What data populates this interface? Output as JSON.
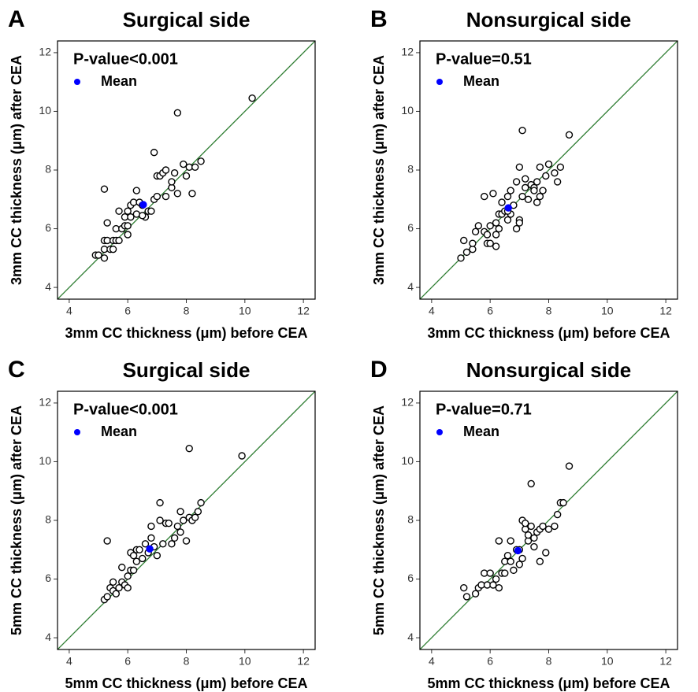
{
  "chart_data": [
    {
      "type": "scatter",
      "panel": "A",
      "title": "Surgical side",
      "xlabel": "3mm CC thickness (μm) before CEA",
      "ylabel": "3mm CC thickness (μm) after CEA",
      "annotation": "P-value<0.001",
      "xlim": [
        3.6,
        12.4
      ],
      "ylim": [
        3.6,
        12.4
      ],
      "xticks": [
        4,
        6,
        8,
        10,
        12
      ],
      "yticks": [
        4,
        6,
        8,
        10,
        12
      ],
      "identity_line": {
        "color": "#2e7d32"
      },
      "series": [
        {
          "color": "#000000",
          "x": [
            4.9,
            5.0,
            5.2,
            5.2,
            5.2,
            5.3,
            5.3,
            5.4,
            5.5,
            5.5,
            5.6,
            5.6,
            5.7,
            5.7,
            5.8,
            5.9,
            5.9,
            6.0,
            6.0,
            6.0,
            6.1,
            6.1,
            6.2,
            6.3,
            6.3,
            6.4,
            6.5,
            6.6,
            6.7,
            6.8,
            6.9,
            6.9,
            7.0,
            7.0,
            7.1,
            7.2,
            7.3,
            7.3,
            7.5,
            7.5,
            7.6,
            7.7,
            7.7,
            7.9,
            8.0,
            8.1,
            8.2,
            8.3,
            8.5,
            10.25,
            5.2,
            6.5
          ],
          "y": [
            5.1,
            5.1,
            5.0,
            5.3,
            5.6,
            5.6,
            6.2,
            5.3,
            5.3,
            5.6,
            5.6,
            6.0,
            6.6,
            5.6,
            6.0,
            6.1,
            6.4,
            5.8,
            6.1,
            6.6,
            6.8,
            6.4,
            6.9,
            7.3,
            6.5,
            6.9,
            6.8,
            6.4,
            6.6,
            6.6,
            8.6,
            7.0,
            7.1,
            7.8,
            7.8,
            7.9,
            8.0,
            7.1,
            7.4,
            7.6,
            7.9,
            9.95,
            7.2,
            8.2,
            7.8,
            8.1,
            7.2,
            8.1,
            8.3,
            10.45,
            7.35,
            6.45
          ]
        },
        {
          "name": "Mean",
          "color": "#0000ff",
          "x": [
            6.53
          ],
          "y": [
            6.82
          ]
        }
      ]
    },
    {
      "type": "scatter",
      "panel": "B",
      "title": "Nonsurgical side",
      "xlabel": "3mm CC thickness (μm) before CEA",
      "ylabel": "3mm CC thickness (μm) after CEA",
      "annotation": "P-value=0.51",
      "xlim": [
        3.6,
        12.4
      ],
      "ylim": [
        3.6,
        12.4
      ],
      "xticks": [
        4,
        6,
        8,
        10,
        12
      ],
      "yticks": [
        4,
        6,
        8,
        10,
        12
      ],
      "identity_line": {
        "color": "#2e7d32"
      },
      "series": [
        {
          "color": "#000000",
          "x": [
            5.0,
            5.1,
            5.2,
            5.4,
            5.4,
            5.5,
            5.6,
            5.8,
            5.8,
            5.9,
            5.9,
            6.0,
            6.0,
            6.1,
            6.2,
            6.2,
            6.3,
            6.3,
            6.4,
            6.4,
            6.5,
            6.6,
            6.6,
            6.7,
            6.7,
            6.8,
            6.9,
            6.9,
            7.0,
            7.0,
            7.0,
            7.1,
            7.1,
            7.2,
            7.2,
            7.3,
            7.4,
            7.5,
            7.5,
            7.6,
            7.6,
            7.7,
            7.7,
            7.8,
            7.9,
            8.0,
            8.2,
            8.3,
            8.4,
            8.7,
            6.6,
            6.2
          ],
          "y": [
            5.0,
            5.6,
            5.2,
            5.3,
            5.5,
            5.9,
            6.1,
            7.1,
            5.9,
            5.5,
            5.8,
            5.5,
            6.1,
            7.2,
            5.4,
            5.8,
            6.5,
            6.0,
            6.5,
            6.9,
            6.6,
            6.3,
            7.1,
            7.3,
            6.5,
            6.8,
            6.0,
            7.6,
            8.1,
            6.3,
            6.2,
            7.1,
            9.35,
            7.7,
            7.4,
            7.0,
            7.5,
            7.4,
            7.3,
            7.6,
            6.9,
            7.1,
            8.1,
            7.3,
            7.8,
            8.2,
            7.9,
            7.6,
            8.1,
            9.2,
            6.6,
            6.2
          ]
        },
        {
          "name": "Mean",
          "color": "#0000ff",
          "x": [
            6.62
          ],
          "y": [
            6.71
          ]
        }
      ]
    },
    {
      "type": "scatter",
      "panel": "C",
      "title": "Surgical side",
      "xlabel": "5mm CC thickness (μm) before CEA",
      "ylabel": "5mm CC thickness (μm) after CEA",
      "annotation": "P-value<0.001",
      "xlim": [
        3.6,
        12.4
      ],
      "ylim": [
        3.6,
        12.4
      ],
      "xticks": [
        4,
        6,
        8,
        10,
        12
      ],
      "yticks": [
        4,
        6,
        8,
        10,
        12
      ],
      "identity_line": {
        "color": "#2e7d32"
      },
      "series": [
        {
          "color": "#000000",
          "x": [
            5.2,
            5.3,
            5.3,
            5.4,
            5.5,
            5.5,
            5.6,
            5.7,
            5.8,
            5.8,
            5.9,
            6.0,
            6.0,
            6.1,
            6.1,
            6.2,
            6.2,
            6.3,
            6.3,
            6.4,
            6.5,
            6.6,
            6.7,
            6.8,
            6.8,
            6.9,
            7.0,
            7.1,
            7.1,
            7.2,
            7.3,
            7.4,
            7.5,
            7.6,
            7.7,
            7.8,
            7.8,
            7.9,
            8.0,
            8.1,
            8.1,
            8.2,
            8.3,
            8.4,
            8.5,
            9.9
          ],
          "y": [
            5.3,
            5.4,
            7.3,
            5.7,
            5.9,
            5.6,
            5.5,
            5.7,
            5.9,
            6.4,
            5.8,
            6.1,
            5.7,
            6.9,
            6.3,
            6.3,
            6.8,
            7.0,
            6.6,
            7.0,
            6.7,
            7.2,
            6.9,
            7.4,
            7.8,
            7.1,
            6.8,
            8.0,
            8.6,
            7.2,
            7.9,
            7.9,
            7.2,
            7.4,
            7.8,
            8.3,
            7.6,
            8.0,
            7.3,
            10.45,
            8.1,
            8.0,
            8.1,
            8.3,
            8.6,
            10.2
          ]
        },
        {
          "name": "Mean",
          "color": "#0000ff",
          "x": [
            6.75
          ],
          "y": [
            7.03
          ]
        }
      ]
    },
    {
      "type": "scatter",
      "panel": "D",
      "title": "Nonsurgical side",
      "xlabel": "5mm CC thickness (μm) before CEA",
      "ylabel": "5mm CC thickness (μm) after CEA",
      "annotation": "P-value=0.71",
      "xlim": [
        3.6,
        12.4
      ],
      "ylim": [
        3.6,
        12.4
      ],
      "xticks": [
        4,
        6,
        8,
        10,
        12
      ],
      "yticks": [
        4,
        6,
        8,
        10,
        12
      ],
      "identity_line": {
        "color": "#2e7d32"
      },
      "series": [
        {
          "color": "#000000",
          "x": [
            5.1,
            5.2,
            5.5,
            5.6,
            5.7,
            5.8,
            5.9,
            6.0,
            6.1,
            6.2,
            6.3,
            6.3,
            6.4,
            6.5,
            6.6,
            6.7,
            6.7,
            6.8,
            6.9,
            7.0,
            7.1,
            7.1,
            7.2,
            7.2,
            7.3,
            7.3,
            7.4,
            7.4,
            7.5,
            7.5,
            7.6,
            7.7,
            7.7,
            7.8,
            7.9,
            8.0,
            8.2,
            8.3,
            8.4,
            8.5,
            8.7,
            6.5,
            7.0
          ],
          "y": [
            5.7,
            5.4,
            5.5,
            5.7,
            5.8,
            6.2,
            5.8,
            6.2,
            5.8,
            6.0,
            5.7,
            7.3,
            6.2,
            6.6,
            6.8,
            7.3,
            6.6,
            6.3,
            7.0,
            6.5,
            6.7,
            8.0,
            7.7,
            7.9,
            7.3,
            7.5,
            9.25,
            7.8,
            7.1,
            7.4,
            7.6,
            7.7,
            6.6,
            7.8,
            6.9,
            7.7,
            7.8,
            8.2,
            8.6,
            8.6,
            9.85,
            6.2,
            7.0
          ]
        },
        {
          "name": "Mean",
          "color": "#0000ff",
          "x": [
            6.95
          ],
          "y": [
            6.97
          ]
        }
      ]
    }
  ]
}
